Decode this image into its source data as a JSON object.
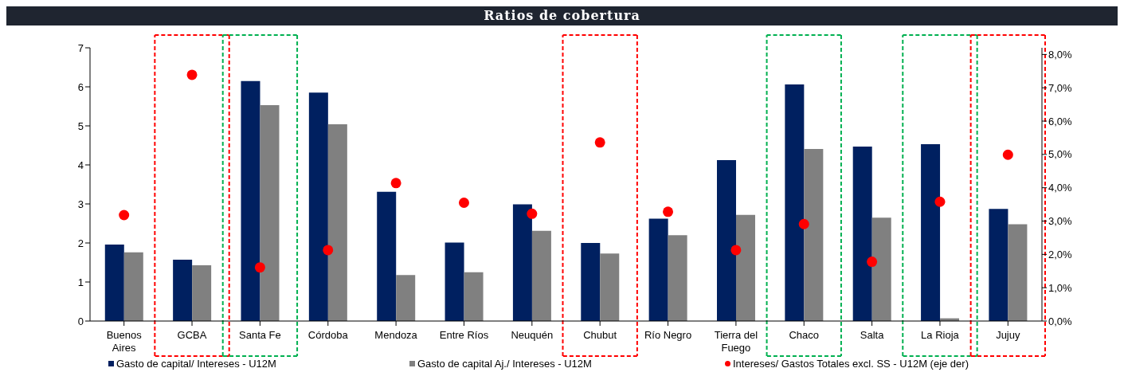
{
  "chart_data": {
    "type": "bar",
    "title": "Ratios de cobertura",
    "categories": [
      "Buenos Aires",
      "GCBA",
      "Santa Fe",
      "Córdoba",
      "Mendoza",
      "Entre Ríos",
      "Neuquén",
      "Chubut",
      "Río Negro",
      "Tierra del Fuego",
      "Chaco",
      "Salta",
      "La Rioja",
      "Jujuy"
    ],
    "series": [
      {
        "name": "Gasto de capital/ Intereses - U12M",
        "color": "#002060",
        "values": [
          1.96,
          1.57,
          6.15,
          5.85,
          3.31,
          2.01,
          2.99,
          2.0,
          2.62,
          4.12,
          6.06,
          4.47,
          4.53,
          2.87
        ]
      },
      {
        "name": "Gasto de capital Aj./ Intereses - U12M",
        "color": "#808080",
        "values": [
          1.76,
          1.43,
          5.53,
          5.04,
          1.18,
          1.25,
          2.31,
          1.73,
          2.2,
          2.72,
          4.41,
          2.65,
          0.07,
          2.48
        ]
      },
      {
        "name": "Intereses/ Gastos Totales excl. SS - U12M (eje der)",
        "type": "scatter",
        "axis": "y2",
        "marker": "circle",
        "color": "#ff0000",
        "values": [
          3.18,
          7.39,
          1.61,
          2.13,
          4.14,
          3.55,
          3.22,
          5.36,
          3.28,
          2.13,
          2.91,
          1.78,
          3.58,
          4.99
        ]
      }
    ],
    "ylim": [
      0,
      7
    ],
    "yticks": [
      0,
      1,
      2,
      3,
      4,
      5,
      6,
      7
    ],
    "y2lim": [
      0,
      8.2
    ],
    "y2ticks": [
      {
        "value": 0,
        "label": "0,0%"
      },
      {
        "value": 1,
        "label": "1,0%"
      },
      {
        "value": 2,
        "label": "2,0%"
      },
      {
        "value": 3,
        "label": "3,0%"
      },
      {
        "value": 4,
        "label": "4,0%"
      },
      {
        "value": 5,
        "label": "5,0%"
      },
      {
        "value": 6,
        "label": "6,0%"
      },
      {
        "value": 7,
        "label": "7,0%"
      },
      {
        "value": 8,
        "label": "8,0%"
      }
    ],
    "legend": "bottom"
  }
}
